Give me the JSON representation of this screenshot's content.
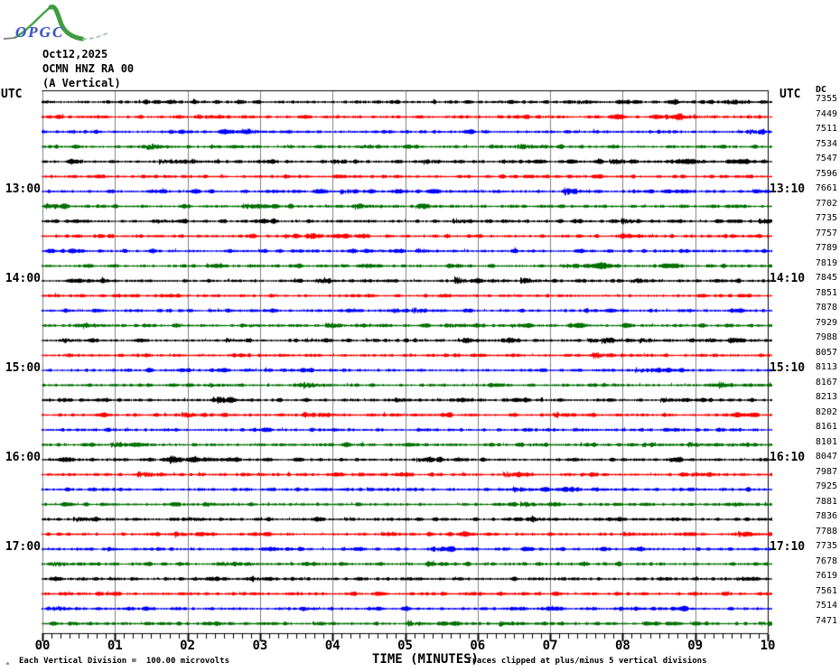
{
  "logo": {
    "text": "OPGC"
  },
  "header": {
    "date": "Oct12,2025",
    "station": "OCMN HNZ RA 00",
    "component": "(A Vertical)"
  },
  "axes": {
    "utc_left": "UTC",
    "utc_right": "UTC",
    "dc_label": "DC"
  },
  "x_axis_title": "TIME (MINUTES)",
  "footer": {
    "scale_mark": "ₘ",
    "left": "Each Vertical Division =  100.00 microvolts",
    "right": "Traces clipped at plus/minus 5 vertical divisions"
  },
  "colors": {
    "grid": "#808080",
    "frame": "#000000",
    "trace_cycle": [
      "#000000",
      "#ff0000",
      "#0000ff",
      "#007000"
    ]
  },
  "chart_data": {
    "type": "line",
    "subtype": "helicorder-seismogram",
    "title": "OCMN HNZ RA 00 (A Vertical) Oct12,2025",
    "xlabel": "TIME (MINUTES)",
    "ylabel": "UTC",
    "x_axis": {
      "min": 0,
      "max": 10,
      "tick_labels": [
        "00",
        "01",
        "02",
        "03",
        "04",
        "05",
        "06",
        "07",
        "08",
        "09",
        "10"
      ],
      "minor_subdivisions_per_minute": 8,
      "grid": true
    },
    "minutes_per_row": 10,
    "clip_note": "Traces clipped at plus/minus 5 vertical divisions",
    "vertical_division_microvolts": 100.0,
    "rows": [
      {
        "dc": 7355,
        "left": "",
        "right": ""
      },
      {
        "dc": 7449,
        "left": "",
        "right": ""
      },
      {
        "dc": 7511,
        "left": "",
        "right": ""
      },
      {
        "dc": 7534,
        "left": "",
        "right": ""
      },
      {
        "dc": 7547,
        "left": "",
        "right": ""
      },
      {
        "dc": 7596,
        "left": "",
        "right": ""
      },
      {
        "dc": 7661,
        "left": "13:00",
        "right": "13:10"
      },
      {
        "dc": 7702,
        "left": "",
        "right": ""
      },
      {
        "dc": 7735,
        "left": "",
        "right": ""
      },
      {
        "dc": 7757,
        "left": "",
        "right": ""
      },
      {
        "dc": 7789,
        "left": "",
        "right": ""
      },
      {
        "dc": 7819,
        "left": "",
        "right": ""
      },
      {
        "dc": 7845,
        "left": "14:00",
        "right": "14:10"
      },
      {
        "dc": 7851,
        "left": "",
        "right": ""
      },
      {
        "dc": 7878,
        "left": "",
        "right": ""
      },
      {
        "dc": 7929,
        "left": "",
        "right": ""
      },
      {
        "dc": 7988,
        "left": "",
        "right": ""
      },
      {
        "dc": 8057,
        "left": "",
        "right": ""
      },
      {
        "dc": 8113,
        "left": "15:00",
        "right": "15:10"
      },
      {
        "dc": 8167,
        "left": "",
        "right": ""
      },
      {
        "dc": 8213,
        "left": "",
        "right": ""
      },
      {
        "dc": 8202,
        "left": "",
        "right": ""
      },
      {
        "dc": 8161,
        "left": "",
        "right": ""
      },
      {
        "dc": 8101,
        "left": "",
        "right": ""
      },
      {
        "dc": 8047,
        "left": "16:00",
        "right": "16:10"
      },
      {
        "dc": 7987,
        "left": "",
        "right": ""
      },
      {
        "dc": 7925,
        "left": "",
        "right": ""
      },
      {
        "dc": 7881,
        "left": "",
        "right": ""
      },
      {
        "dc": 7836,
        "left": "",
        "right": ""
      },
      {
        "dc": 7788,
        "left": "",
        "right": ""
      },
      {
        "dc": 7735,
        "left": "17:00",
        "right": "17:10"
      },
      {
        "dc": 7678,
        "left": "",
        "right": ""
      },
      {
        "dc": 7619,
        "left": "",
        "right": ""
      },
      {
        "dc": 7561,
        "left": "",
        "right": ""
      },
      {
        "dc": 7514,
        "left": "",
        "right": ""
      },
      {
        "dc": 7471,
        "left": "",
        "right": ""
      }
    ]
  }
}
